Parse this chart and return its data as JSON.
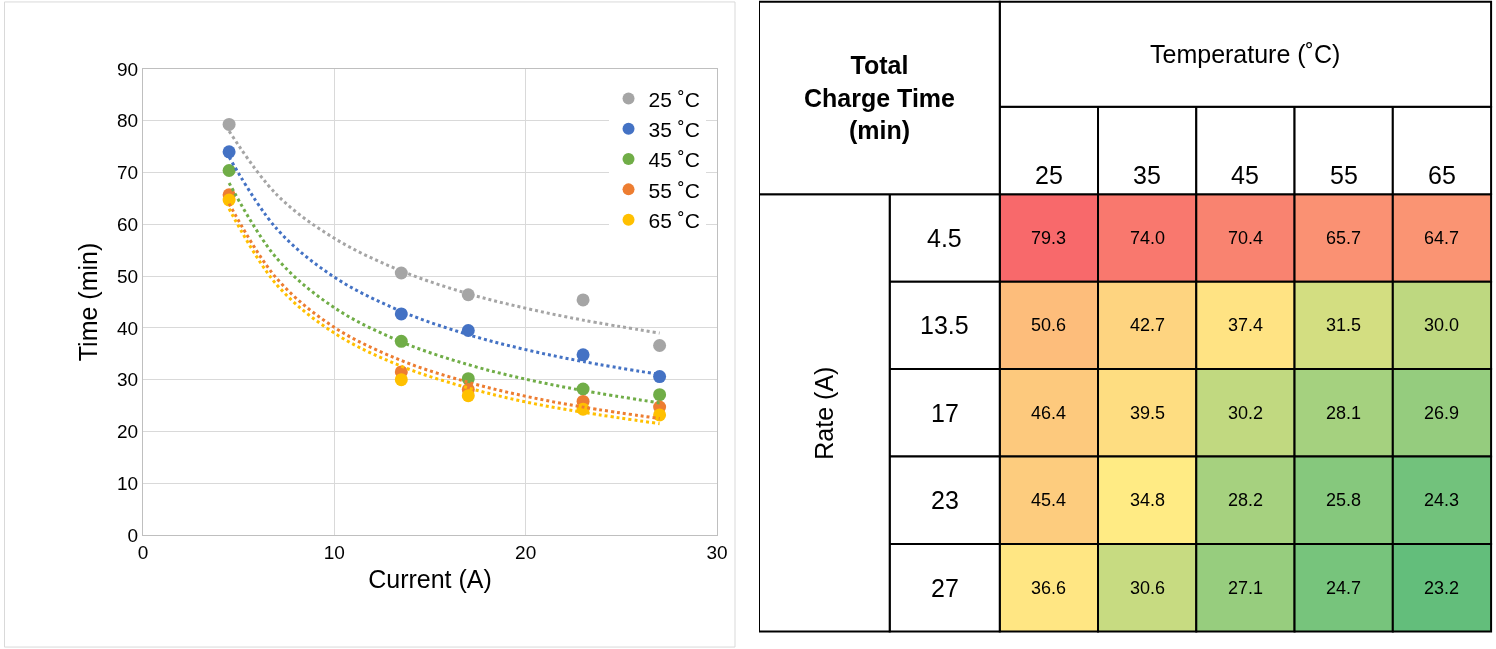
{
  "chart_data": [
    {
      "type": "scatter",
      "xlabel": "Current (A)",
      "ylabel": "Time (min)",
      "xlim": [
        0,
        30
      ],
      "xticks": [
        0,
        10,
        20,
        30
      ],
      "ylim": [
        0,
        90
      ],
      "yticks": [
        0,
        10,
        20,
        30,
        40,
        50,
        60,
        70,
        80,
        90
      ],
      "grid": true,
      "legend": "top right",
      "series": [
        {
          "name": "25 ˚C",
          "color": "#a5a5a5",
          "marker": "circle",
          "x": [
            4.5,
            13.5,
            17,
            23,
            27
          ],
          "values": [
            79.3,
            50.6,
            46.4,
            45.4,
            36.6
          ]
        },
        {
          "name": "35 ˚C",
          "color": "#4472c4",
          "marker": "circle",
          "x": [
            4.5,
            13.5,
            17,
            23,
            27
          ],
          "values": [
            74.0,
            42.7,
            39.5,
            34.8,
            30.6
          ]
        },
        {
          "name": "45 ˚C",
          "color": "#70ad47",
          "marker": "circle",
          "x": [
            4.5,
            13.5,
            17,
            23,
            27
          ],
          "values": [
            70.4,
            37.4,
            30.2,
            28.2,
            27.1
          ]
        },
        {
          "name": "55 ˚C",
          "color": "#ed7d31",
          "marker": "circle",
          "x": [
            4.5,
            13.5,
            17,
            23,
            27
          ],
          "values": [
            65.7,
            31.5,
            28.1,
            25.8,
            24.7
          ]
        },
        {
          "name": "65 ˚C",
          "color": "#ffc000",
          "marker": "circle",
          "x": [
            4.5,
            13.5,
            17,
            23,
            27
          ],
          "values": [
            64.7,
            30.0,
            26.9,
            24.3,
            23.2
          ]
        },
        {
          "type": "line",
          "line_style": "dotted",
          "color": "#a5a5a5",
          "x": [
            4.5,
            7,
            10,
            13.5,
            17,
            20,
            23,
            27
          ],
          "values": [
            78,
            65.7,
            57.3,
            51.0,
            46.6,
            43.8,
            41.5,
            39
          ]
        },
        {
          "type": "line",
          "line_style": "dotted",
          "color": "#4472c4",
          "x": [
            4.5,
            7,
            10,
            13.5,
            17,
            20,
            23,
            27
          ],
          "values": [
            73,
            59.1,
            49.8,
            43.2,
            38.7,
            35.8,
            33.5,
            31
          ]
        },
        {
          "type": "line",
          "line_style": "dotted",
          "color": "#70ad47",
          "x": [
            4.5,
            7,
            10,
            13.5,
            17,
            20,
            23,
            27
          ],
          "values": [
            68,
            53.4,
            43.9,
            37.3,
            32.9,
            30.1,
            27.9,
            25.5
          ]
        },
        {
          "type": "line",
          "line_style": "dotted",
          "color": "#ed7d31",
          "x": [
            4.5,
            7,
            10,
            13.5,
            17,
            20,
            23,
            27
          ],
          "values": [
            64,
            49.5,
            40.1,
            33.7,
            29.5,
            26.8,
            24.7,
            22.5
          ]
        },
        {
          "type": "line",
          "line_style": "dotted",
          "color": "#ffc000",
          "x": [
            4.5,
            7,
            10,
            13.5,
            17,
            20,
            23,
            27
          ],
          "values": [
            63,
            48.3,
            39.0,
            32.6,
            28.4,
            25.7,
            23.7,
            21.5
          ]
        }
      ]
    },
    {
      "type": "heatmap",
      "title": "Total Charge Time (min)",
      "xlabel": "Temperature (˚C)",
      "ylabel": "Rate (A)",
      "categories": [
        "25",
        "35",
        "45",
        "55",
        "65"
      ],
      "y_categories": [
        "4.5",
        "13.5",
        "17",
        "23",
        "27"
      ],
      "colors": [
        "#63be7b",
        "#ffeb84",
        "#f8696b"
      ],
      "cells": [
        [
          79.3,
          74.0,
          70.4,
          65.7,
          64.7
        ],
        [
          50.6,
          42.7,
          37.4,
          31.5,
          30.0
        ],
        [
          46.4,
          39.5,
          30.2,
          28.1,
          26.9
        ],
        [
          45.4,
          34.8,
          28.2,
          25.8,
          24.3
        ],
        [
          36.6,
          30.6,
          27.1,
          24.7,
          23.2
        ]
      ],
      "cell_labels": [
        [
          "79.3",
          "74.0",
          "70.4",
          "65.7",
          "64.7"
        ],
        [
          "50.6",
          "42.7",
          "37.4",
          "31.5",
          "30.0"
        ],
        [
          "46.4",
          "39.5",
          "30.2",
          "28.1",
          "26.9"
        ],
        [
          "45.4",
          "34.8",
          "28.2",
          "25.8",
          "24.3"
        ],
        [
          "36.6",
          "30.6",
          "27.1",
          "24.7",
          "23.2"
        ]
      ]
    }
  ]
}
